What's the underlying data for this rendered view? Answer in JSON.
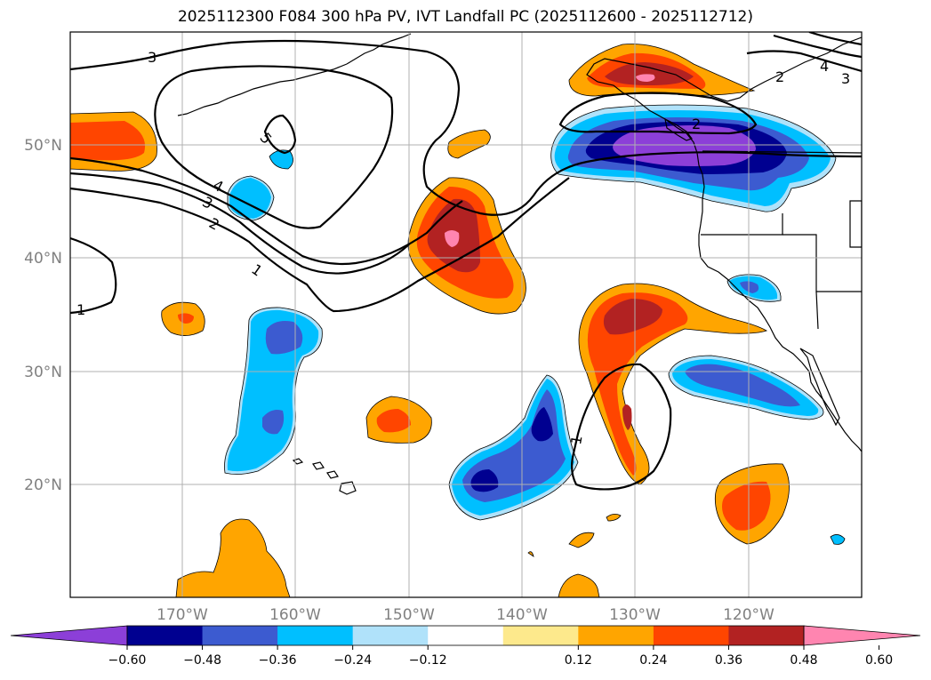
{
  "title": "2025112300 F084 300 hPa PV, IVT Landfall PC (2025112600 - 2025112712)",
  "lat_labels": [
    "50°N",
    "40°N",
    "30°N",
    "20°N"
  ],
  "lon_labels": [
    "170°W",
    "160°W",
    "150°W",
    "140°W",
    "130°W",
    "120°W"
  ],
  "pv_contour_labels": [
    "3",
    "5",
    "4",
    "3",
    "2",
    "1",
    "1",
    "3",
    "4",
    "2",
    "2",
    "1"
  ],
  "colorbar": {
    "ticks": [
      "−0.60",
      "−0.48",
      "−0.36",
      "−0.24",
      "−0.12",
      "0.12",
      "0.24",
      "0.36",
      "0.48",
      "0.60"
    ],
    "colors": [
      "#8c3fd8",
      "#000090",
      "#3c5bd0",
      "#00bfff",
      "#b0e2fa",
      "#ffffff",
      "#fde98c",
      "#ffa500",
      "#ff4500",
      "#b22222",
      "#ff85b0"
    ]
  },
  "map_colors": {
    "land_lines": "#000000",
    "grid": "#b0b0b0"
  }
}
